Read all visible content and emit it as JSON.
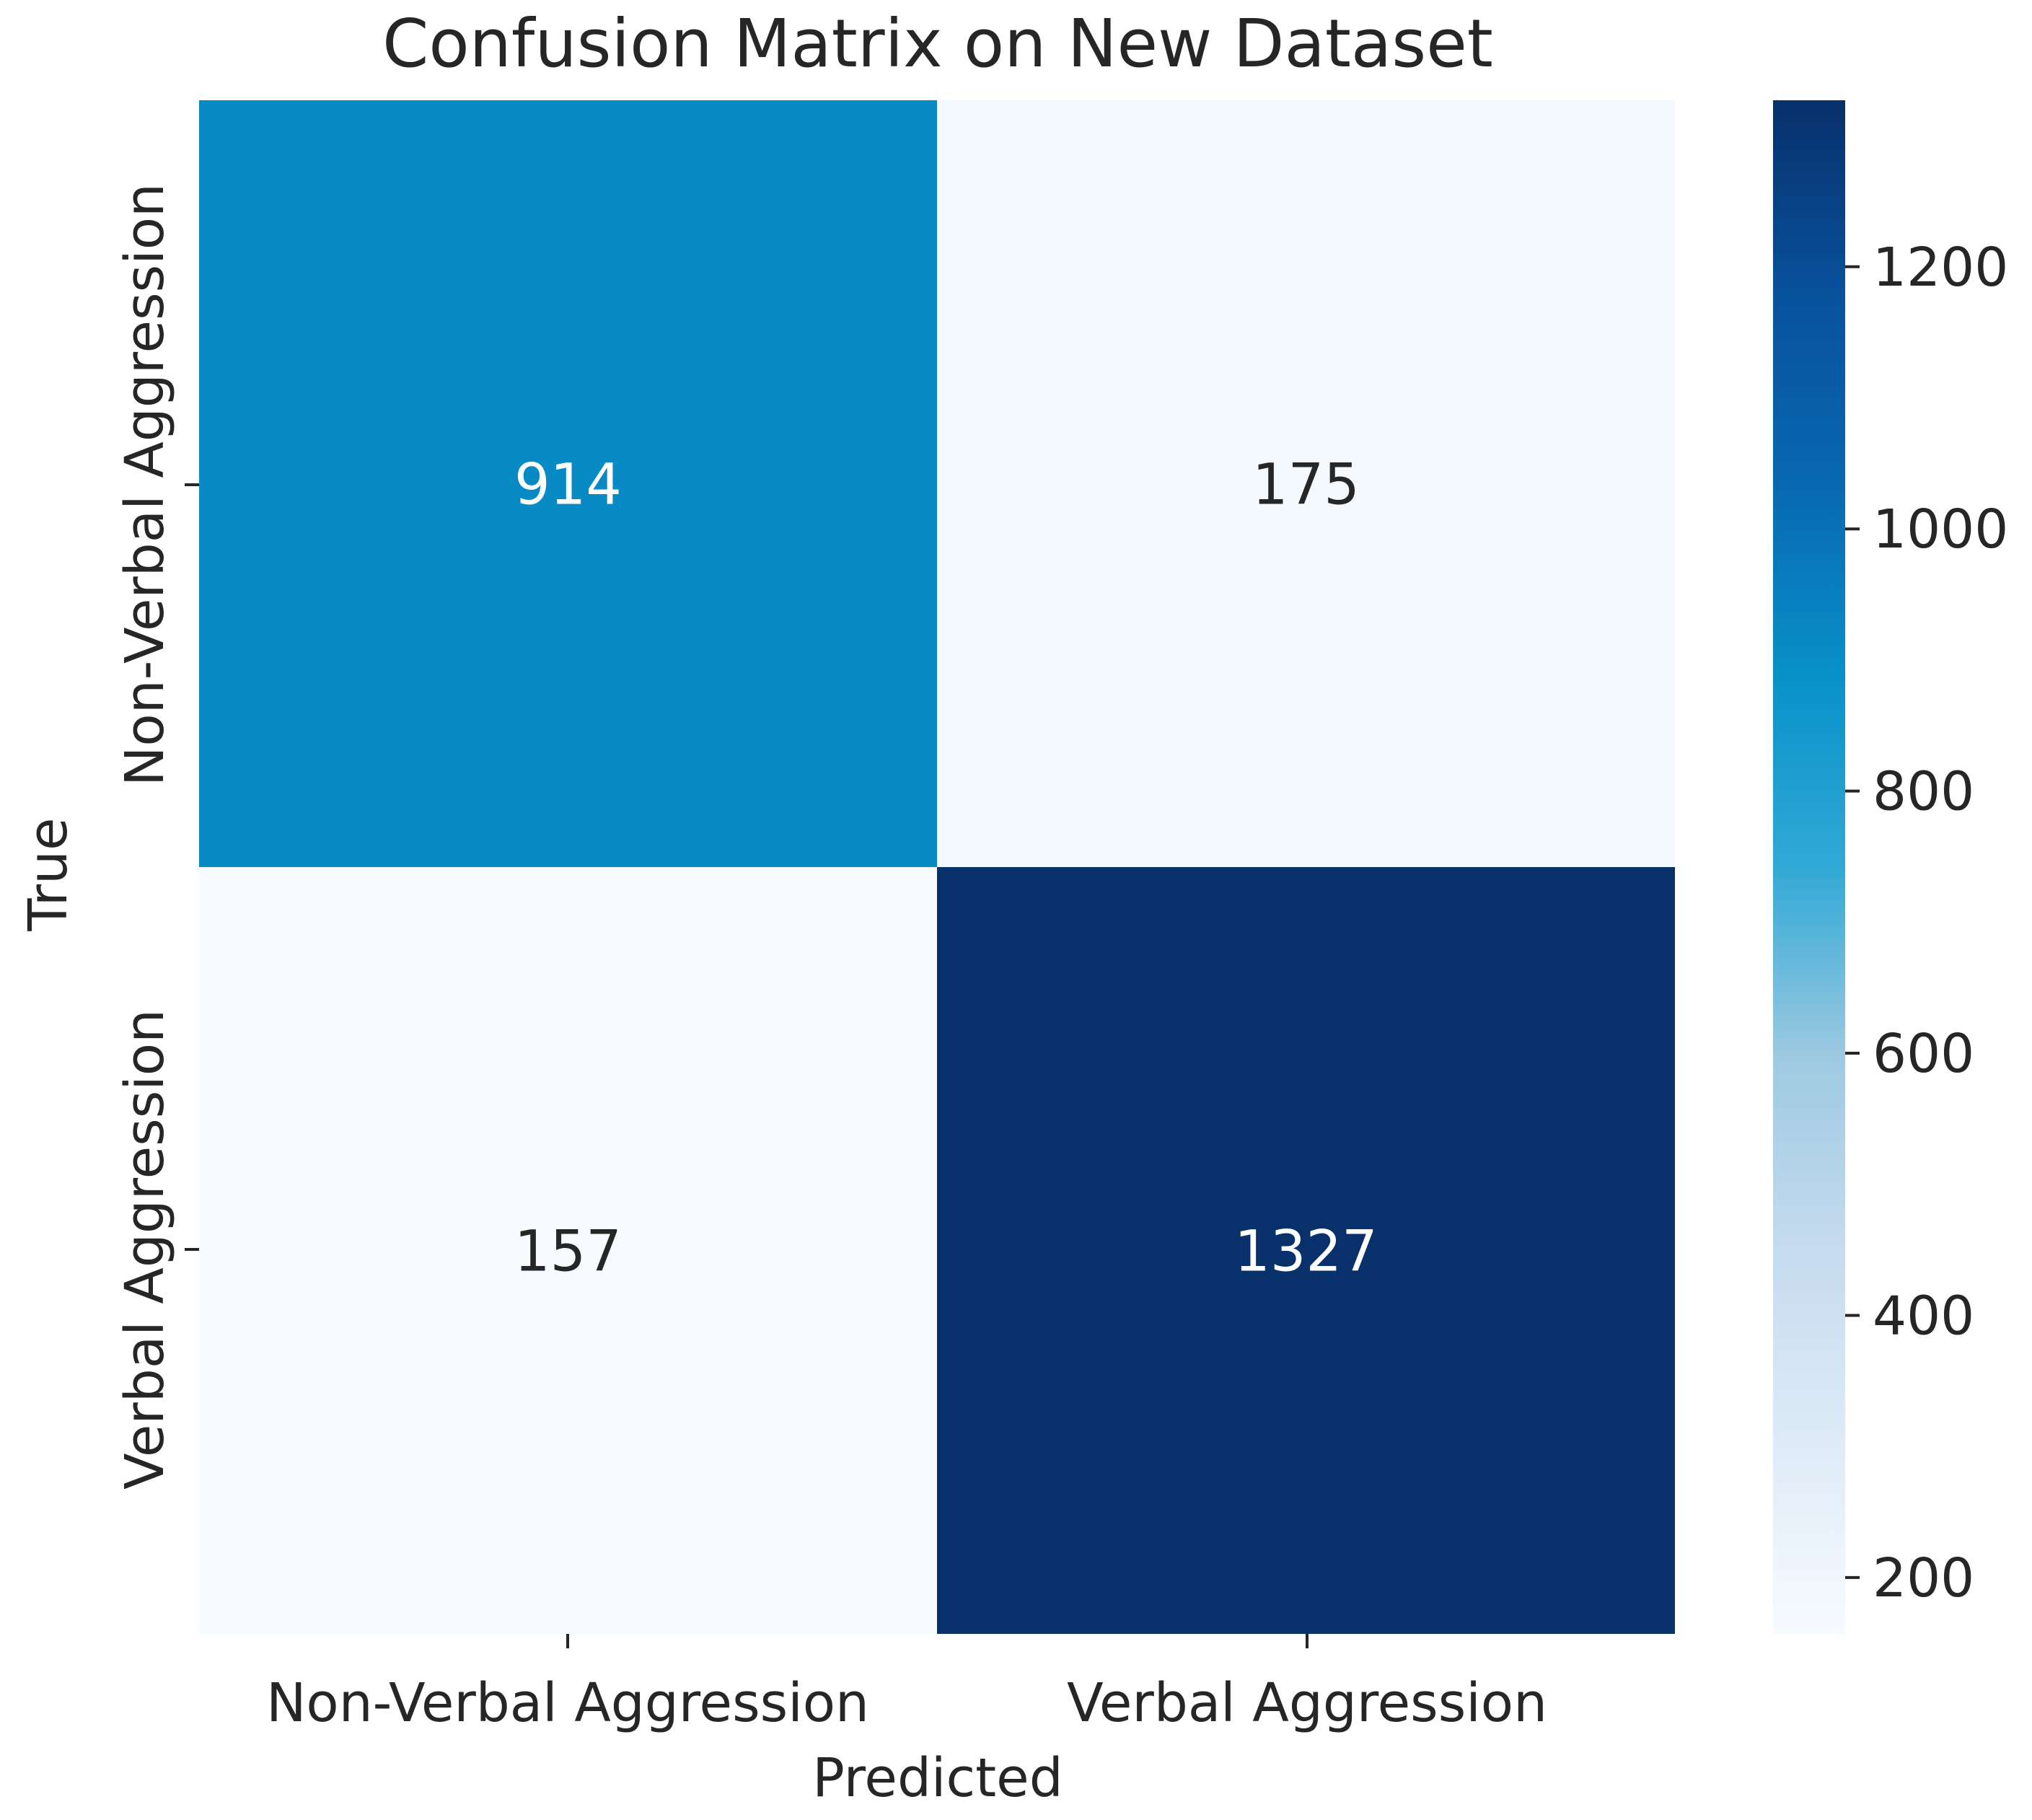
{
  "chart_data": {
    "type": "heatmap",
    "title": "Confusion Matrix on New Dataset",
    "xlabel": "Predicted",
    "ylabel": "True",
    "x_categories": [
      "Non-Verbal Aggression",
      "Verbal Aggression"
    ],
    "y_categories": [
      "Non-Verbal Aggression",
      "Verbal Aggression"
    ],
    "matrix": [
      [
        914,
        175
      ],
      [
        157,
        1327
      ]
    ],
    "colormap": "Blues",
    "colorbar": {
      "range": [
        157,
        1327
      ],
      "ticks": [
        200,
        400,
        600,
        800,
        1000,
        1200
      ],
      "tick_labels": [
        "200",
        "400",
        "600",
        "800",
        "1000",
        "1200"
      ]
    },
    "colors": {
      "cell_text_dark": "#262626",
      "cell_text_light": "#ffffff"
    }
  }
}
